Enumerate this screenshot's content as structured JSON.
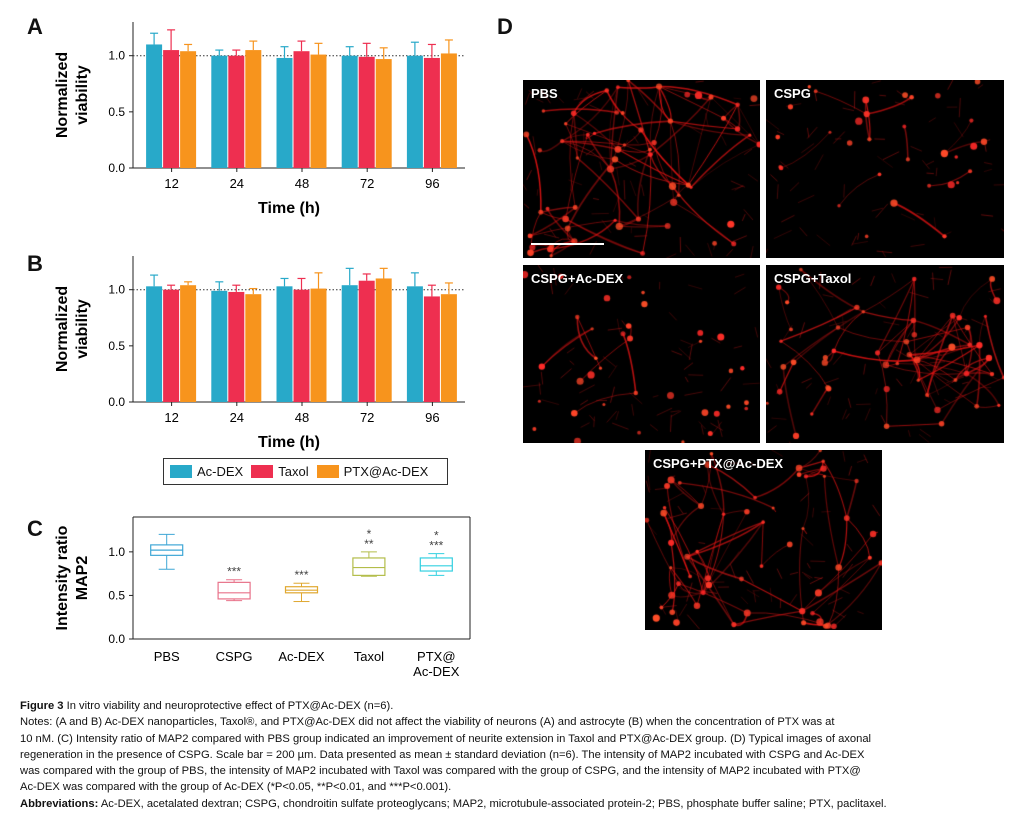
{
  "panel_letters": {
    "a": "A",
    "b": "B",
    "c": "C",
    "d": "D"
  },
  "legend": {
    "items": [
      {
        "label": "Ac-DEX",
        "color": "#28a9c9"
      },
      {
        "label": "Taxol",
        "color": "#ee2f50"
      },
      {
        "label": "PTX@Ac-DEX",
        "color": "#f7941d"
      }
    ]
  },
  "chart_data": [
    {
      "id": "A",
      "type": "bar",
      "categories": [
        "12",
        "24",
        "48",
        "72",
        "96"
      ],
      "xlabel": "Time (h)",
      "ylabel": [
        "Normalized",
        "viability"
      ],
      "ylim": [
        0,
        1.3
      ],
      "yticks": [
        "0.0",
        "0.5",
        "1.0"
      ],
      "reference_line": 1.0,
      "series": [
        {
          "name": "Ac-DEX",
          "color": "#28a9c9",
          "values": [
            1.1,
            1.0,
            0.98,
            1.0,
            1.0
          ],
          "errors": [
            0.1,
            0.05,
            0.1,
            0.08,
            0.12
          ]
        },
        {
          "name": "Taxol",
          "color": "#ee2f50",
          "values": [
            1.05,
            1.0,
            1.04,
            0.99,
            0.98
          ],
          "errors": [
            0.18,
            0.05,
            0.09,
            0.12,
            0.12
          ]
        },
        {
          "name": "PTX@Ac-DEX",
          "color": "#f7941d",
          "values": [
            1.04,
            1.05,
            1.01,
            0.97,
            1.02
          ],
          "errors": [
            0.06,
            0.08,
            0.1,
            0.1,
            0.12
          ]
        }
      ]
    },
    {
      "id": "B",
      "type": "bar",
      "categories": [
        "12",
        "24",
        "48",
        "72",
        "96"
      ],
      "xlabel": "Time (h)",
      "ylabel": [
        "Normalized",
        "viability"
      ],
      "ylim": [
        0,
        1.3
      ],
      "yticks": [
        "0.0",
        "0.5",
        "1.0"
      ],
      "reference_line": 1.0,
      "series": [
        {
          "name": "Ac-DEX",
          "color": "#28a9c9",
          "values": [
            1.03,
            0.99,
            1.03,
            1.04,
            1.03
          ],
          "errors": [
            0.1,
            0.08,
            0.07,
            0.15,
            0.12
          ]
        },
        {
          "name": "Taxol",
          "color": "#ee2f50",
          "values": [
            1.0,
            0.98,
            1.0,
            1.08,
            0.94
          ],
          "errors": [
            0.04,
            0.06,
            0.1,
            0.06,
            0.1
          ]
        },
        {
          "name": "PTX@Ac-DEX",
          "color": "#f7941d",
          "values": [
            1.04,
            0.96,
            1.01,
            1.1,
            0.96
          ],
          "errors": [
            0.03,
            0.05,
            0.14,
            0.09,
            0.1
          ]
        }
      ]
    },
    {
      "id": "C",
      "type": "box",
      "ylabel": [
        "Intensity ratio",
        "MAP2"
      ],
      "ylim": [
        0,
        1.4
      ],
      "yticks": [
        "0.0",
        "0.5",
        "1.0"
      ],
      "groups": [
        {
          "label": [
            "PBS"
          ],
          "color": "#3fa7d6",
          "min": 0.8,
          "q1": 0.96,
          "median": 1.02,
          "q3": 1.08,
          "max": 1.2,
          "marks": []
        },
        {
          "label": [
            "CSPG"
          ],
          "color": "#e8728a",
          "min": 0.44,
          "q1": 0.46,
          "median": 0.53,
          "q3": 0.65,
          "max": 0.68,
          "marks": [
            "***"
          ]
        },
        {
          "label": [
            "Ac-DEX"
          ],
          "color": "#e0a830",
          "min": 0.43,
          "q1": 0.53,
          "median": 0.56,
          "q3": 0.6,
          "max": 0.64,
          "marks": [
            "***"
          ]
        },
        {
          "label": [
            "Taxol"
          ],
          "color": "#b3bd4a",
          "min": 0.72,
          "q1": 0.73,
          "median": 0.82,
          "q3": 0.93,
          "max": 1.0,
          "marks": [
            "*",
            "**"
          ]
        },
        {
          "label": [
            "PTX@",
            "Ac-DEX"
          ],
          "color": "#33d0e0",
          "min": 0.73,
          "q1": 0.78,
          "median": 0.84,
          "q3": 0.93,
          "max": 0.98,
          "marks": [
            "*",
            "***"
          ]
        }
      ]
    }
  ],
  "micrographs": [
    {
      "label": "PBS",
      "density": 1.0,
      "scale_bar": true
    },
    {
      "label": "CSPG",
      "density": 0.35,
      "scale_bar": false
    },
    {
      "label": "CSPG+Ac-DEX",
      "density": 0.45,
      "scale_bar": false
    },
    {
      "label": "CSPG+Taxol",
      "density": 0.8,
      "scale_bar": false
    },
    {
      "label": "CSPG+PTX@Ac-DEX",
      "density": 0.95,
      "scale_bar": false
    }
  ],
  "caption": {
    "title_bold": "Figure 3",
    "title_rest": " In vitro viability and neuroprotective effect of PTX@Ac-DEX (n=6).",
    "notes_lines": [
      "Notes: (A and B) Ac-DEX nanoparticles, Taxol®, and PTX@Ac-DEX did not affect the viability of neurons (A) and astrocyte (B) when the concentration of PTX was at",
      "10 nM. (C) Intensity ratio of MAP2 compared with PBS group indicated an improvement of neurite extension in Taxol and PTX@Ac-DEX group. (D) Typical images of axonal",
      "regeneration in the presence of CSPG. Scale bar = 200 µm. Data presented as mean ± standard deviation (n=6). The intensity of MAP2 incubated with CSPG and Ac-DEX",
      "was compared with the group of PBS, the intensity of MAP2 incubated with Taxol was compared with the group of CSPG, and the intensity of MAP2 incubated with PTX@",
      "Ac-DEX was compared with the group of Ac-DEX (*P<0.05, **P<0.01, and ***P<0.001)."
    ],
    "abbrev_bold": "Abbreviations:",
    "abbrev_rest": " Ac-DEX, acetalated dextran; CSPG, chondroitin sulfate proteoglycans; MAP2, microtubule-associated protein-2; PBS, phosphate buffer saline; PTX, paclitaxel."
  }
}
